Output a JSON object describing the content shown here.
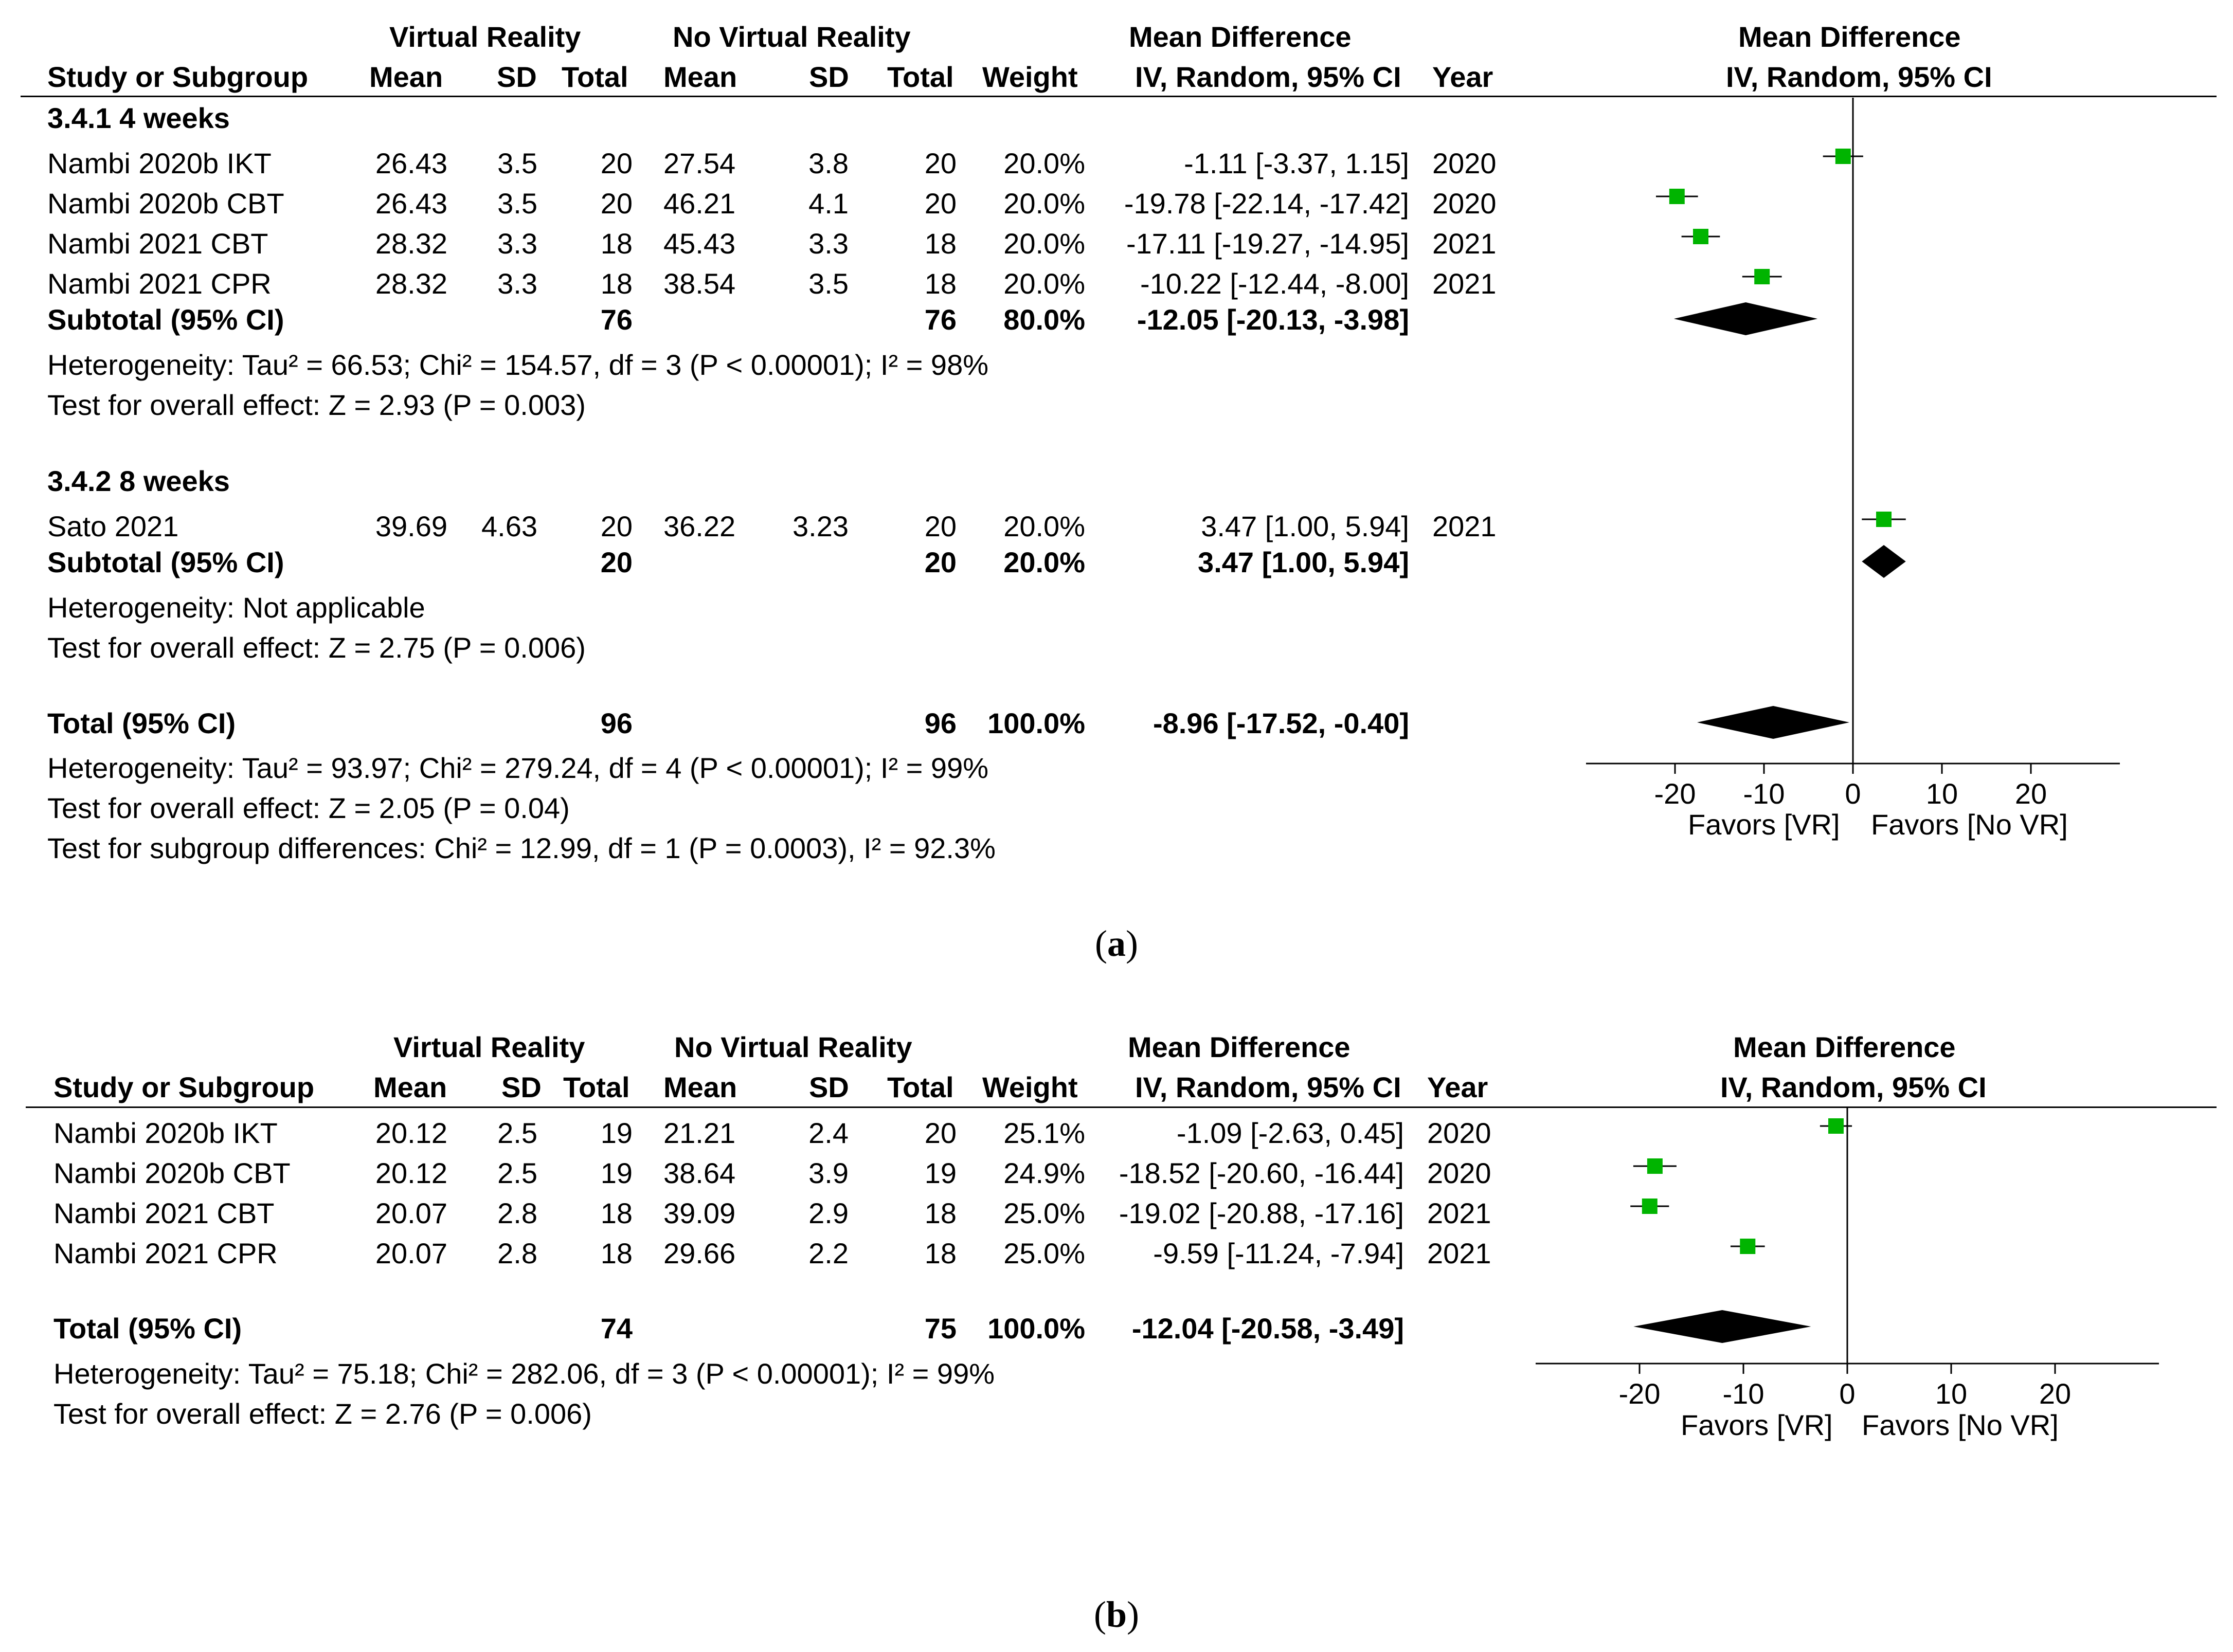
{
  "figure_a": {
    "caption": {
      "open": "(",
      "letter": "a",
      "close": ")"
    },
    "header": {
      "group_vr": "Virtual Reality",
      "group_novr": "No Virtual Reality",
      "md_title": "Mean Difference",
      "col_study": "Study or Subgroup",
      "col_mean": "Mean",
      "col_sd": "SD",
      "col_total": "Total",
      "col_mean2": "Mean",
      "col_sd2": "SD",
      "col_total2": "Total",
      "col_weight": "Weight",
      "col_ci": "IV, Random, 95% CI",
      "col_year": "Year",
      "plot_title": "Mean Difference",
      "plot_sub": "IV, Random, 95% CI"
    },
    "sub1_title": "3.4.1 4 weeks",
    "sub1_rows": [
      {
        "study": "Nambi 2020b IKT",
        "m1": "26.43",
        "sd1": "3.5",
        "n1": "20",
        "m2": "27.54",
        "sd2": "3.8",
        "n2": "20",
        "w": "20.0%",
        "ci": "-1.11 [-3.37, 1.15]",
        "year": "2020"
      },
      {
        "study": "Nambi 2020b CBT",
        "m1": "26.43",
        "sd1": "3.5",
        "n1": "20",
        "m2": "46.21",
        "sd2": "4.1",
        "n2": "20",
        "w": "20.0%",
        "ci": "-19.78 [-22.14, -17.42]",
        "year": "2020"
      },
      {
        "study": "Nambi 2021 CBT",
        "m1": "28.32",
        "sd1": "3.3",
        "n1": "18",
        "m2": "45.43",
        "sd2": "3.3",
        "n2": "18",
        "w": "20.0%",
        "ci": "-17.11 [-19.27, -14.95]",
        "year": "2021"
      },
      {
        "study": "Nambi 2021 CPR",
        "m1": "28.32",
        "sd1": "3.3",
        "n1": "18",
        "m2": "38.54",
        "sd2": "3.5",
        "n2": "18",
        "w": "20.0%",
        "ci": "-10.22 [-12.44, -8.00]",
        "year": "2021"
      }
    ],
    "sub1_total": {
      "label": "Subtotal (95% CI)",
      "n1": "76",
      "n2": "76",
      "w": "80.0%",
      "ci": "-12.05 [-20.13, -3.98]"
    },
    "sub1_het": "Heterogeneity: Tau² = 66.53; Chi² = 154.57, df = 3 (P < 0.00001); I² = 98%",
    "sub1_test": "Test for overall effect: Z = 2.93 (P = 0.003)",
    "sub2_title": "3.4.2 8 weeks",
    "sub2_rows": [
      {
        "study": "Sato 2021",
        "m1": "39.69",
        "sd1": "4.63",
        "n1": "20",
        "m2": "36.22",
        "sd2": "3.23",
        "n2": "20",
        "w": "20.0%",
        "ci": "3.47 [1.00, 5.94]",
        "year": "2021"
      }
    ],
    "sub2_total": {
      "label": "Subtotal (95% CI)",
      "n1": "20",
      "n2": "20",
      "w": "20.0%",
      "ci": "3.47 [1.00, 5.94]"
    },
    "sub2_het": "Heterogeneity: Not applicable",
    "sub2_test": "Test for overall effect: Z = 2.75 (P = 0.006)",
    "total": {
      "label": "Total (95% CI)",
      "n1": "96",
      "n2": "96",
      "w": "100.0%",
      "ci": "-8.96 [-17.52, -0.40]"
    },
    "total_het": "Heterogeneity: Tau² = 93.97; Chi² = 279.24, df = 4 (P < 0.00001); I² = 99%",
    "total_test": "Test for overall effect: Z = 2.05 (P = 0.04)",
    "subgroup_test": "Test for subgroup differences: Chi² = 12.99, df = 1 (P = 0.0003), I² = 92.3%",
    "favors_left": "Favors [VR]",
    "favors_right": "Favors [No VR]"
  },
  "figure_b": {
    "caption": {
      "open": "(",
      "letter": "b",
      "close": ")"
    },
    "header": {
      "group_vr": "Virtual Reality",
      "group_novr": "No Virtual Reality",
      "md_title": "Mean Difference",
      "col_study": "Study or Subgroup",
      "col_mean": "Mean",
      "col_sd": "SD",
      "col_total": "Total",
      "col_mean2": "Mean",
      "col_sd2": "SD",
      "col_total2": "Total",
      "col_weight": "Weight",
      "col_ci": "IV, Random, 95% CI",
      "col_year": "Year",
      "plot_title": "Mean Difference",
      "plot_sub": "IV, Random, 95% CI"
    },
    "rows": [
      {
        "study": "Nambi 2020b IKT",
        "m1": "20.12",
        "sd1": "2.5",
        "n1": "19",
        "m2": "21.21",
        "sd2": "2.4",
        "n2": "20",
        "w": "25.1%",
        "ci": "-1.09 [-2.63, 0.45]",
        "year": "2020"
      },
      {
        "study": "Nambi 2020b CBT",
        "m1": "20.12",
        "sd1": "2.5",
        "n1": "19",
        "m2": "38.64",
        "sd2": "3.9",
        "n2": "19",
        "w": "24.9%",
        "ci": "-18.52 [-20.60, -16.44]",
        "year": "2020"
      },
      {
        "study": "Nambi 2021 CBT",
        "m1": "20.07",
        "sd1": "2.8",
        "n1": "18",
        "m2": "39.09",
        "sd2": "2.9",
        "n2": "18",
        "w": "25.0%",
        "ci": "-19.02 [-20.88, -17.16]",
        "year": "2021"
      },
      {
        "study": "Nambi 2021 CPR",
        "m1": "20.07",
        "sd1": "2.8",
        "n1": "18",
        "m2": "29.66",
        "sd2": "2.2",
        "n2": "18",
        "w": "25.0%",
        "ci": "-9.59 [-11.24, -7.94]",
        "year": "2021"
      }
    ],
    "total": {
      "label": "Total (95% CI)",
      "n1": "74",
      "n2": "75",
      "w": "100.0%",
      "ci": "-12.04 [-20.58, -3.49]"
    },
    "total_het": "Heterogeneity: Tau² = 75.18; Chi² = 282.06, df = 3 (P < 0.00001); I² = 99%",
    "total_test": "Test for overall effect: Z = 2.76 (P = 0.006)",
    "favors_left": "Favors [VR]",
    "favors_right": "Favors [No VR]"
  },
  "chart_data": [
    {
      "type": "forest",
      "title": "Mean Difference IV, Random, 95% CI",
      "xlim": [
        -30,
        30
      ],
      "xticks": [
        "-20",
        "-10",
        "0",
        "10",
        "20"
      ],
      "tick_values": [
        -20,
        -10,
        0,
        10,
        20
      ],
      "studies": [
        {
          "name": "Nambi 2020b IKT",
          "md": -1.11,
          "lo": -3.37,
          "hi": 1.15
        },
        {
          "name": "Nambi 2020b CBT",
          "md": -19.78,
          "lo": -22.14,
          "hi": -17.42
        },
        {
          "name": "Nambi 2021 CBT",
          "md": -17.11,
          "lo": -19.27,
          "hi": -14.95
        },
        {
          "name": "Nambi 2021 CPR",
          "md": -10.22,
          "lo": -12.44,
          "hi": -8.0
        },
        {
          "name": "Sato 2021",
          "md": 3.47,
          "lo": 1.0,
          "hi": 5.94
        }
      ],
      "pooled": [
        {
          "name": "Subtotal 3.4.1",
          "md": -12.05,
          "lo": -20.13,
          "hi": -3.98
        },
        {
          "name": "Subtotal 3.4.2",
          "md": 3.47,
          "lo": 1.0,
          "hi": 5.94
        },
        {
          "name": "Total",
          "md": -8.96,
          "lo": -17.52,
          "hi": -0.4
        }
      ],
      "marker_color": "#00b400"
    },
    {
      "type": "forest",
      "title": "Mean Difference IV, Random, 95% CI",
      "xlim": [
        -30,
        30
      ],
      "xticks": [
        "-20",
        "-10",
        "0",
        "10",
        "20"
      ],
      "tick_values": [
        -20,
        -10,
        0,
        10,
        20
      ],
      "studies": [
        {
          "name": "Nambi 2020b IKT",
          "md": -1.09,
          "lo": -2.63,
          "hi": 0.45
        },
        {
          "name": "Nambi 2020b CBT",
          "md": -18.52,
          "lo": -20.6,
          "hi": -16.44
        },
        {
          "name": "Nambi 2021 CBT",
          "md": -19.02,
          "lo": -20.88,
          "hi": -17.16
        },
        {
          "name": "Nambi 2021 CPR",
          "md": -9.59,
          "lo": -11.24,
          "hi": -7.94
        }
      ],
      "pooled": [
        {
          "name": "Total",
          "md": -12.04,
          "lo": -20.58,
          "hi": -3.49
        }
      ],
      "marker_color": "#00b400"
    }
  ]
}
